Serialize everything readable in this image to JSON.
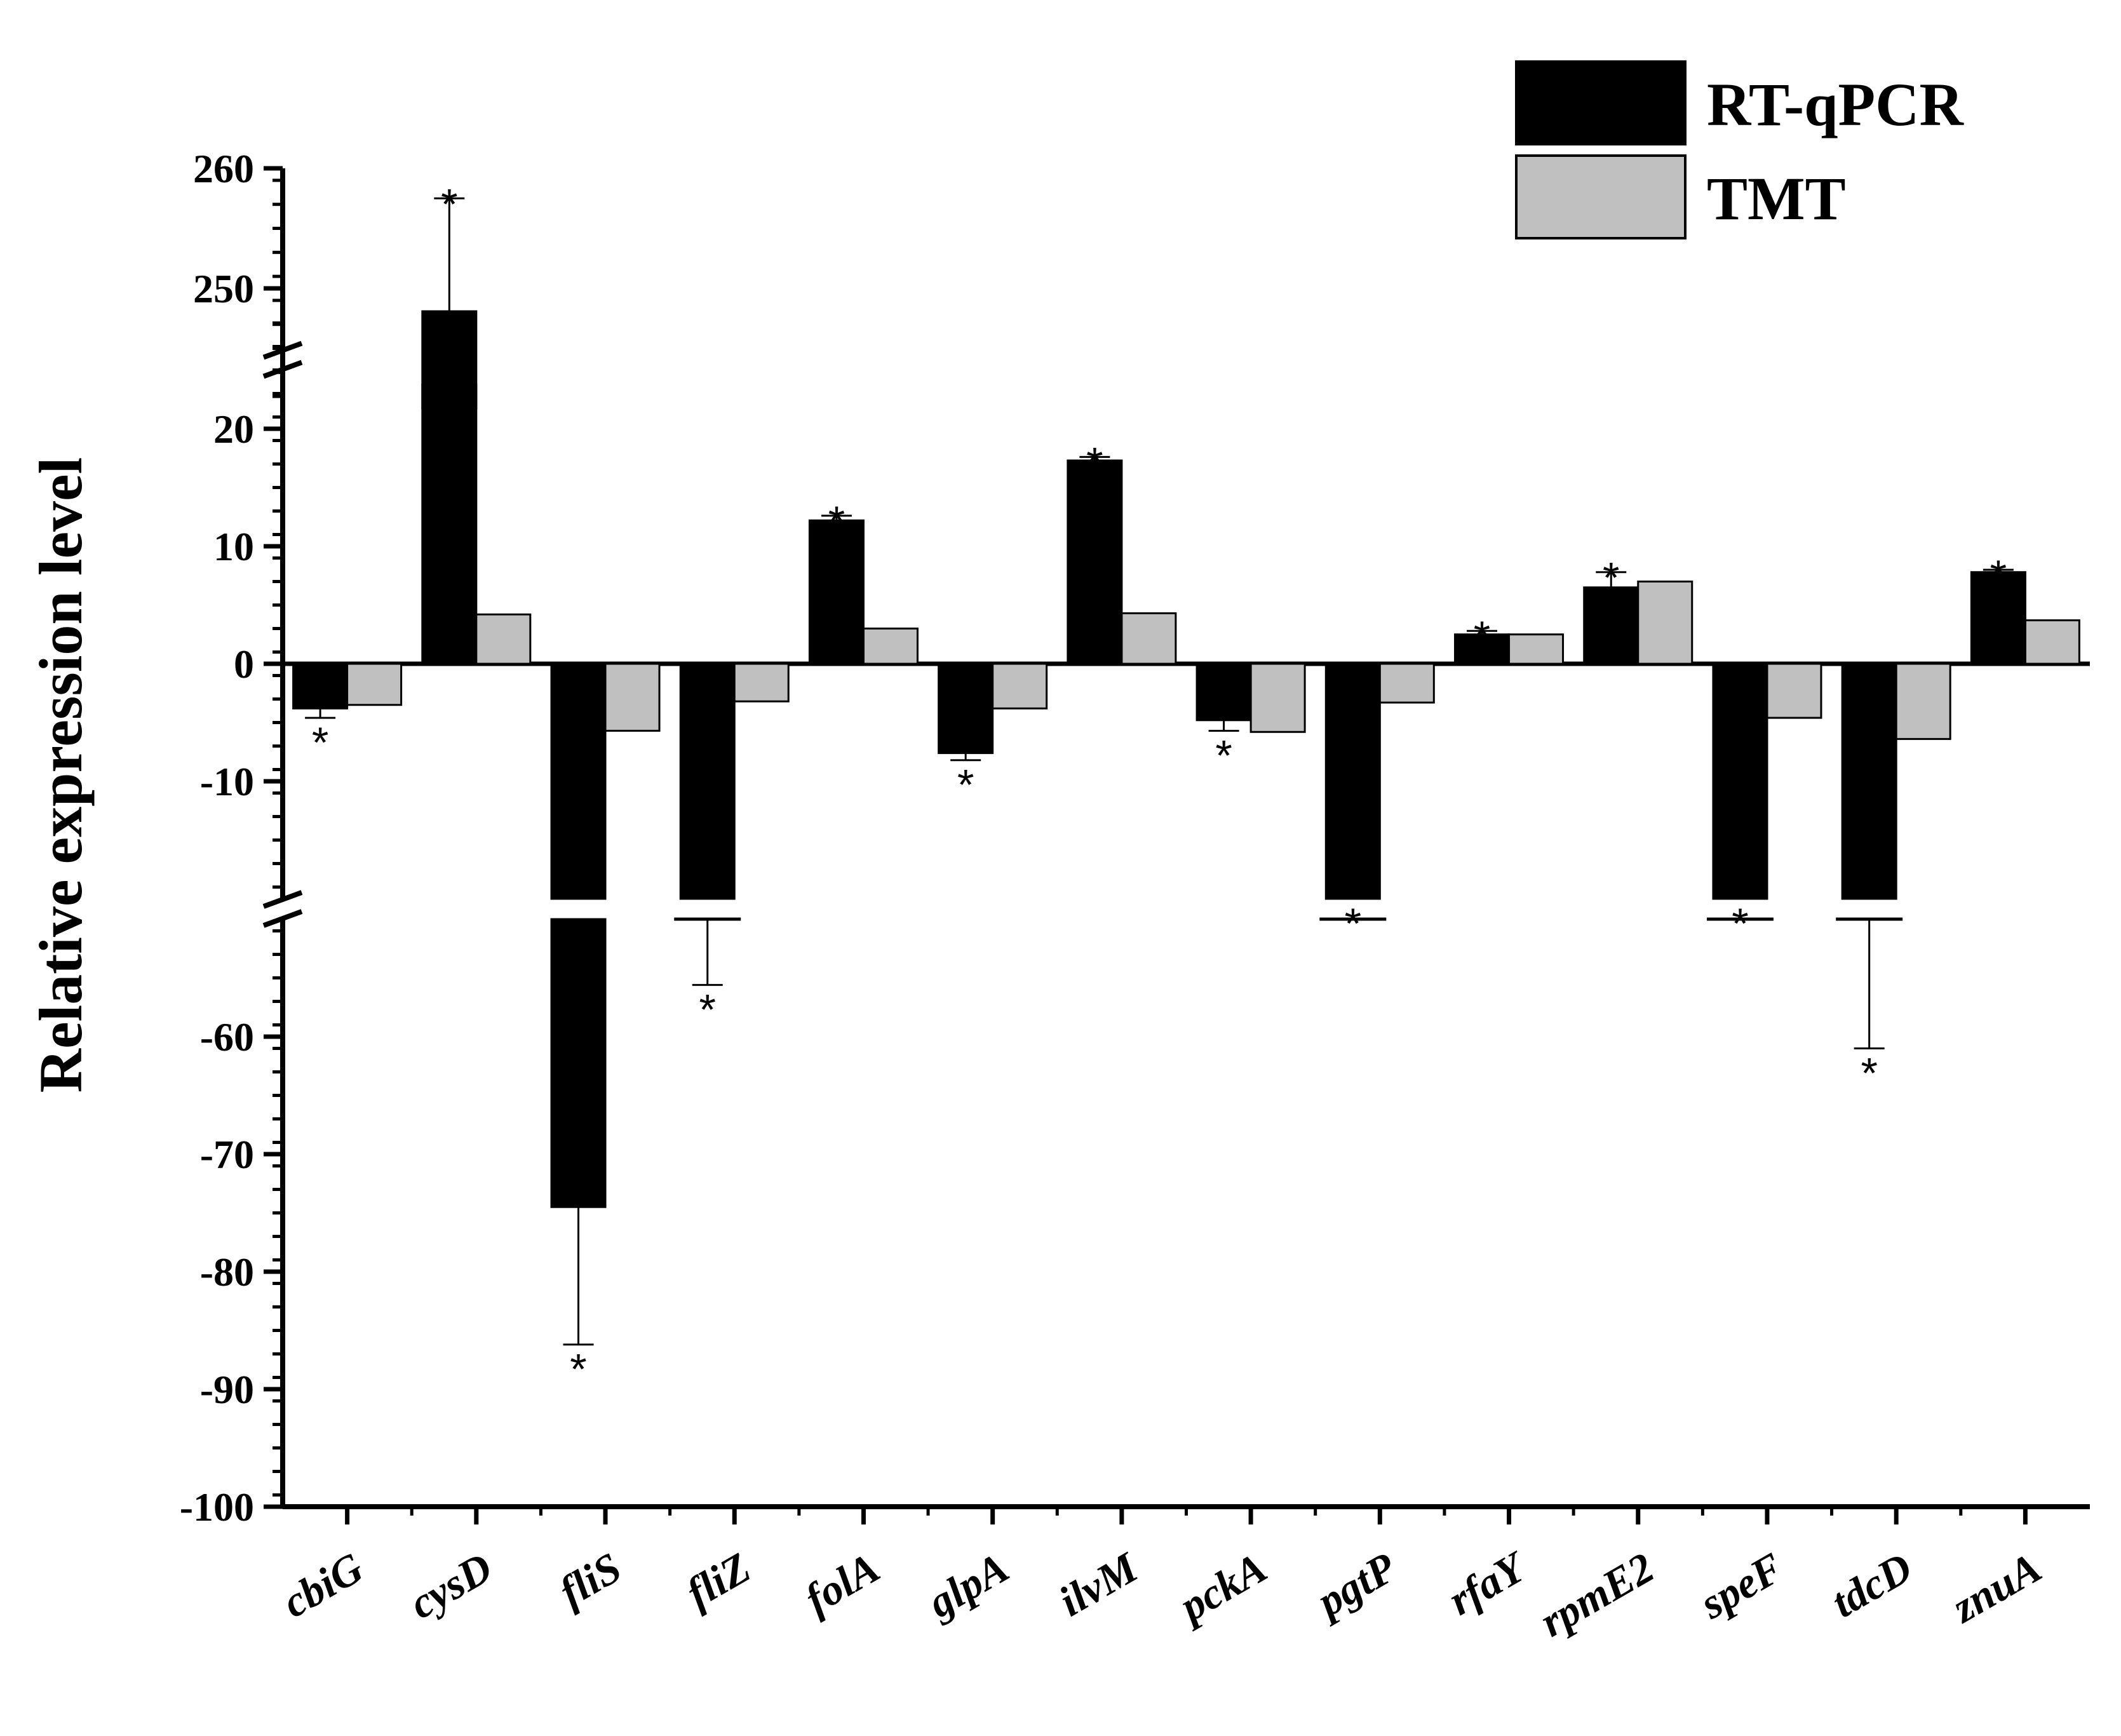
{
  "chart_data": {
    "type": "bar",
    "ylabel": "Relative expression level",
    "categories": [
      "cbiG",
      "cysD",
      "fliS",
      "fliZ",
      "folA",
      "glpA",
      "ilvM",
      "pckA",
      "pgtP",
      "rfaY",
      "rpmE2",
      "speF",
      "tdcD",
      "znuA"
    ],
    "series": [
      {
        "name": "RT-qPCR",
        "color": "#000000",
        "values": [
          -3.8,
          242,
          -74.5,
          -49,
          12.2,
          -7.6,
          17.3,
          -4.8,
          -30,
          2.5,
          6.5,
          -29,
          -49,
          7.8
        ],
        "errors": [
          0.8,
          15.5,
          11.7,
          6.6,
          0.4,
          0.6,
          0.3,
          0.9,
          0,
          0.3,
          1.3,
          0,
          12,
          0.2
        ]
      },
      {
        "name": "TMT",
        "color": "#c0c0c0",
        "values": [
          -3.5,
          4.2,
          -5.7,
          -3.2,
          3.0,
          -3.8,
          4.3,
          -5.8,
          -3.3,
          2.5,
          7.0,
          -4.6,
          -6.4,
          3.7
        ]
      }
    ],
    "significance": [
      "*",
      "*",
      "*",
      "*",
      "*",
      "*",
      "*",
      "*",
      "*",
      "*",
      "*",
      "*",
      "*",
      "*"
    ],
    "y_ticks": [
      260,
      250,
      20,
      10,
      0,
      -10,
      -60,
      -70,
      -80,
      -90,
      -100
    ],
    "y_axis_breaks": [
      [
        -50,
        -20
      ],
      [
        30,
        240
      ]
    ],
    "ylim": [
      -100,
      260
    ],
    "legend_position": "top-right",
    "grid": false
  }
}
